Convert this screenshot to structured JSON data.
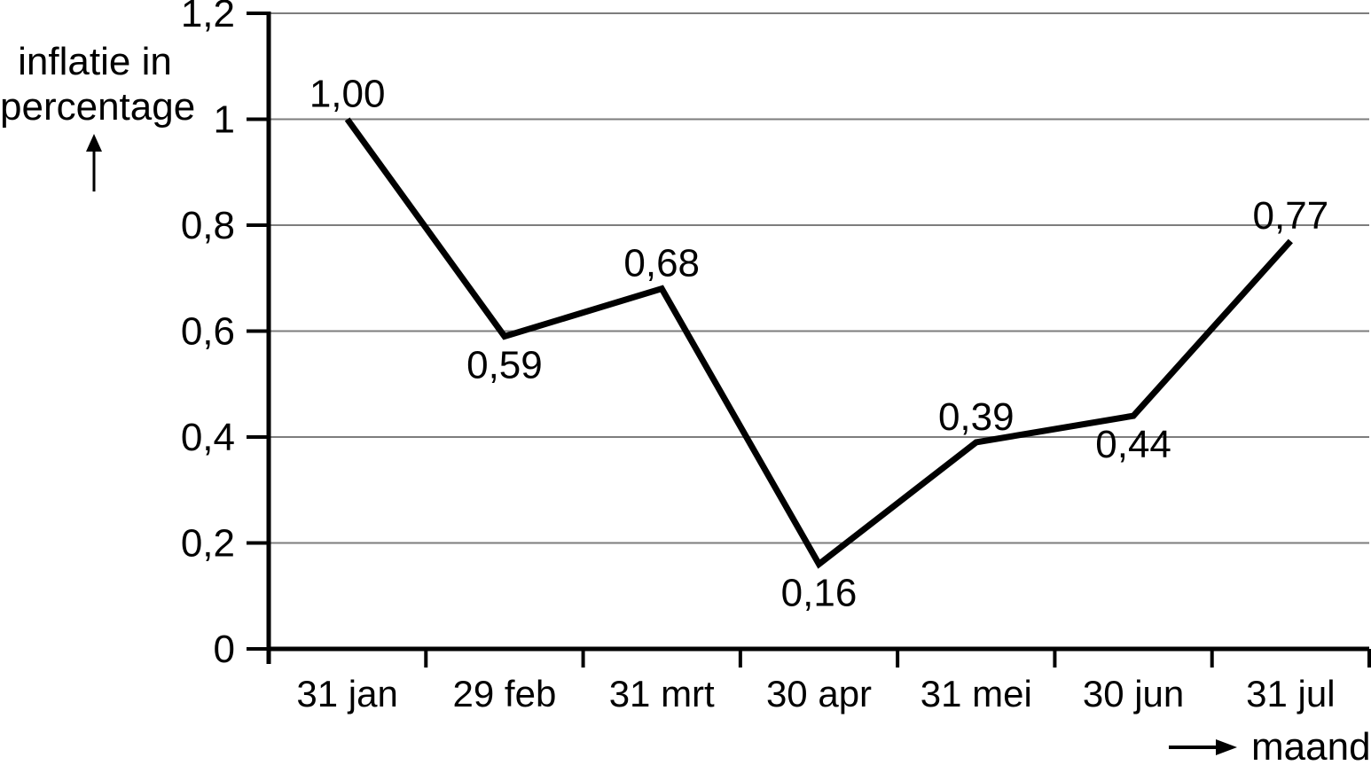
{
  "chart_data": {
    "type": "line",
    "categories": [
      "31 jan",
      "29 feb",
      "31 mrt",
      "30 apr",
      "31 mei",
      "30 jun",
      "31 jul"
    ],
    "values": [
      1.0,
      0.59,
      0.68,
      0.16,
      0.39,
      0.44,
      0.77
    ],
    "point_labels": [
      "1,00",
      "0,59",
      "0,68",
      "0,16",
      "0,39",
      "0,44",
      "0,77"
    ],
    "label_positions": [
      "above",
      "below",
      "above",
      "below",
      "above",
      "below",
      "above"
    ],
    "y_ticks": [
      0,
      0.2,
      0.4,
      0.6,
      0.8,
      1.0,
      1.2
    ],
    "y_tick_labels": [
      "0",
      "0,2",
      "0,4",
      "0,6",
      "0,8",
      "1",
      "1,2"
    ],
    "ylim": [
      0,
      1.2
    ],
    "grid": true,
    "legend": "none",
    "title": "",
    "ylabel": "inflatie in percentage",
    "ylabel_line1": "inflatie in",
    "ylabel_line2": "percentage",
    "xlabel": "maand",
    "line_color": "#000000",
    "grid_color": "#7d7d7d",
    "axis_color": "#000000",
    "text_color": "#000000",
    "background_color": "#ffffff"
  },
  "icons": {
    "y_axis_arrow": "up-arrow-icon",
    "x_axis_arrow": "right-arrow-icon"
  }
}
